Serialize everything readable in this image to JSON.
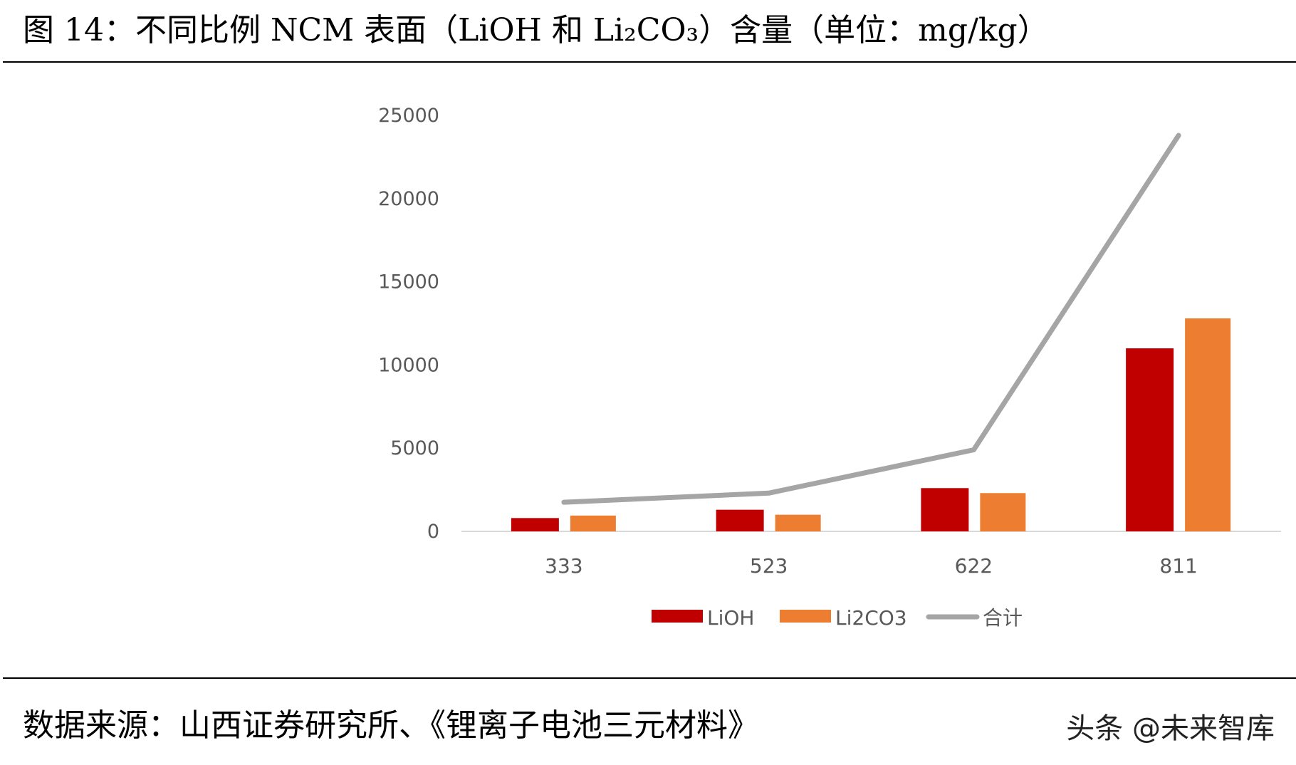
{
  "title": "图 14：不同比例 NCM 表面（LiOH 和 Li₂CO₃）含量（单位：mg/kg）",
  "source": "数据来源：山西证券研究所、《锂离子电池三元材料》",
  "watermark": "头条 @未来智库",
  "chart_data": {
    "type": "bar+line",
    "categories": [
      "333",
      "523",
      "622",
      "811"
    ],
    "series": [
      {
        "name": "LiOH",
        "type": "bar",
        "color": "#C00000",
        "values": [
          800,
          1300,
          2600,
          11000
        ]
      },
      {
        "name": "Li2CO3",
        "type": "bar",
        "color": "#ED7D31",
        "values": [
          950,
          1000,
          2300,
          12800
        ]
      },
      {
        "name": "合计",
        "type": "line",
        "color": "#A5A5A5",
        "values": [
          1750,
          2300,
          4900,
          23800
        ]
      }
    ],
    "ylim": [
      0,
      25000
    ],
    "yticks": [
      "0",
      "5000",
      "10000",
      "15000",
      "20000",
      "25000"
    ],
    "grid": false,
    "legend": "bottom"
  }
}
